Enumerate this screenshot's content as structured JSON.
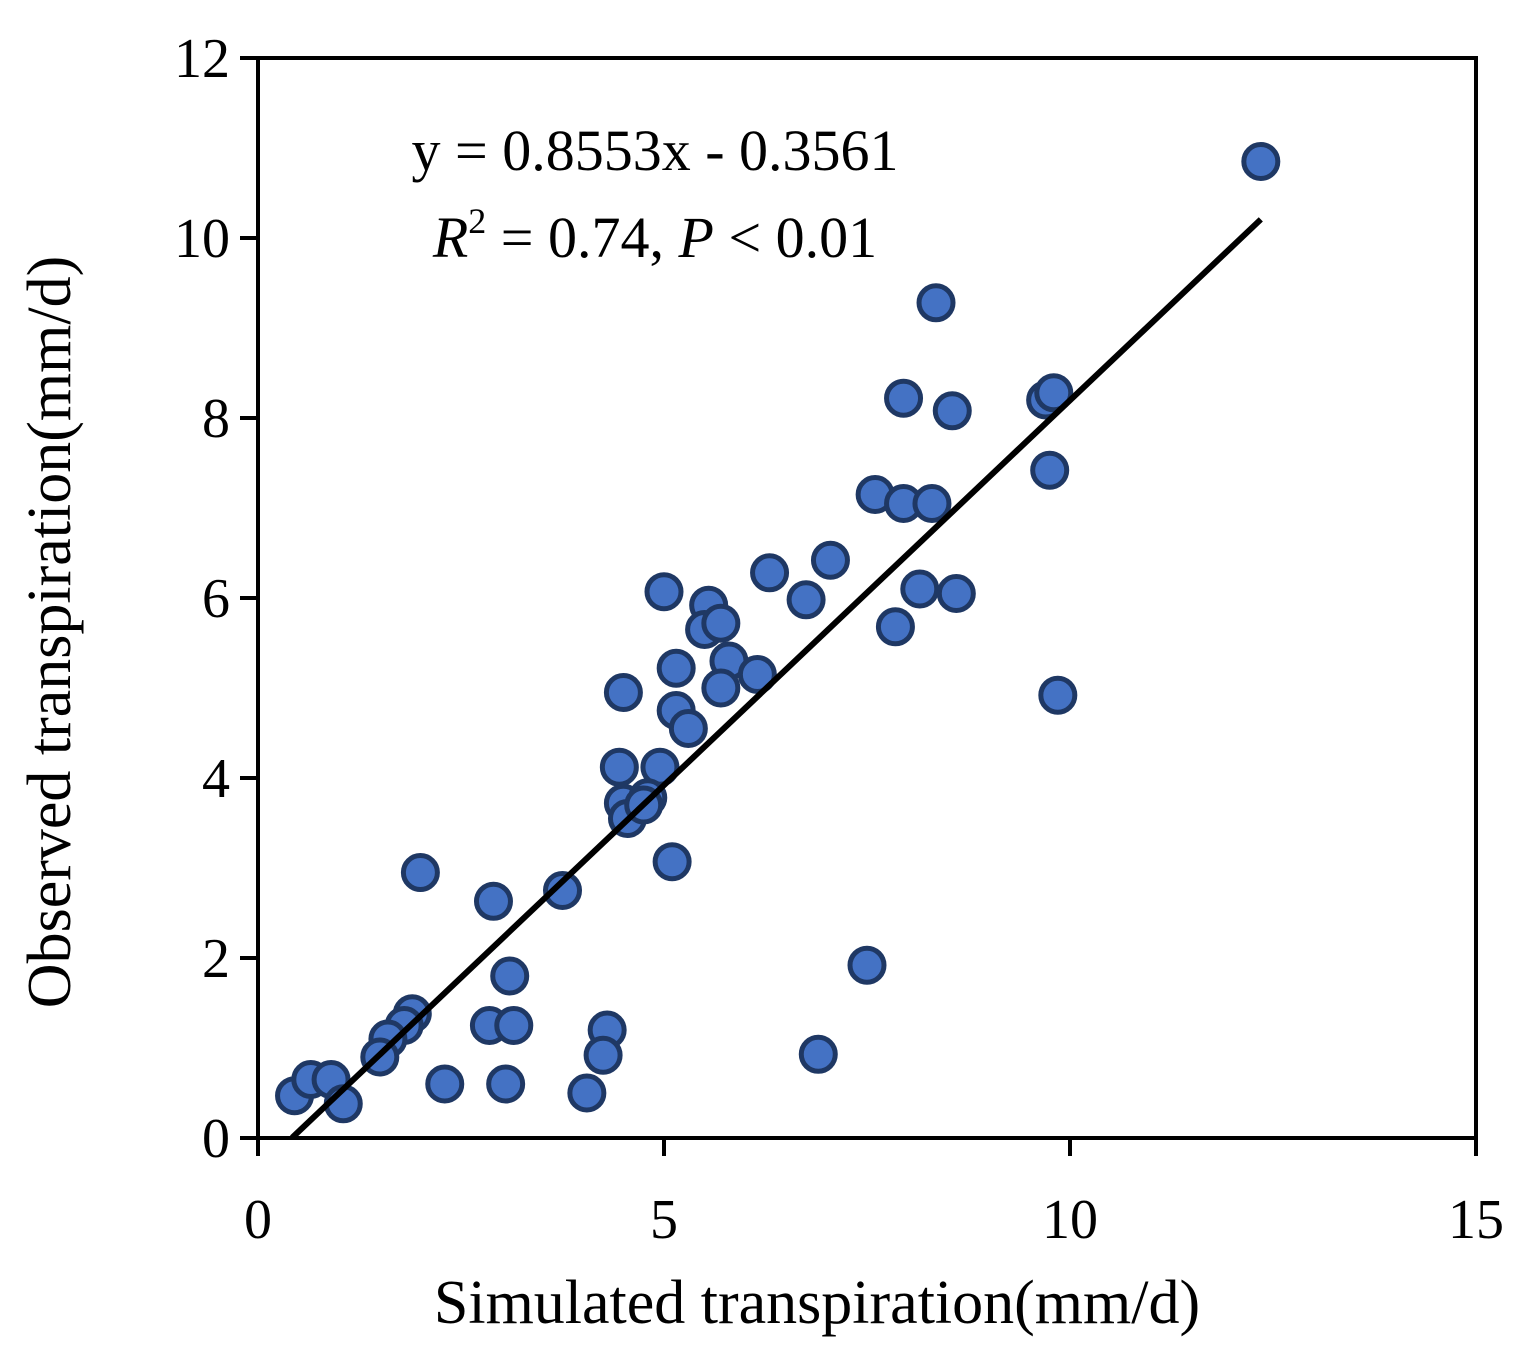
{
  "chart_data": {
    "type": "scatter",
    "xlabel": "Simulated transpiration(mm/d)",
    "ylabel": "Observed  transpiration(mm/d)",
    "xlim": [
      0,
      15
    ],
    "ylim": [
      0,
      12
    ],
    "xticks": [
      "0",
      "5",
      "10",
      "15"
    ],
    "yticks": [
      "0",
      "2",
      "4",
      "6",
      "8",
      "10",
      "12"
    ],
    "grid": false,
    "legend": "none",
    "annotation": {
      "equation": "y = 0.8553x - 0.3561",
      "r2_symbol": "R",
      "r2_superscript": "2",
      "r2_middle": " = 0.74, ",
      "p_symbol": "P",
      "p_rest": " < 0.01"
    },
    "trendline": {
      "slope": 0.8553,
      "intercept": -0.3561,
      "x_range": [
        0.42,
        12.35
      ]
    },
    "series": [
      {
        "name": "Observations",
        "color": "#4472C4",
        "edge_color": "#1F3864",
        "points": [
          [
            12.35,
            10.85
          ],
          [
            8.35,
            9.28
          ],
          [
            7.95,
            8.22
          ],
          [
            8.55,
            8.08
          ],
          [
            9.7,
            8.2
          ],
          [
            9.8,
            8.28
          ],
          [
            9.75,
            7.42
          ],
          [
            7.6,
            7.15
          ],
          [
            7.95,
            7.05
          ],
          [
            8.3,
            7.05
          ],
          [
            8.15,
            6.1
          ],
          [
            8.6,
            6.05
          ],
          [
            7.85,
            5.68
          ],
          [
            7.05,
            6.42
          ],
          [
            6.3,
            6.28
          ],
          [
            6.75,
            5.98
          ],
          [
            5.0,
            6.07
          ],
          [
            5.55,
            5.92
          ],
          [
            5.5,
            5.65
          ],
          [
            5.7,
            5.72
          ],
          [
            5.8,
            5.3
          ],
          [
            6.15,
            5.15
          ],
          [
            5.7,
            5.0
          ],
          [
            5.15,
            5.22
          ],
          [
            4.5,
            4.95
          ],
          [
            5.15,
            4.75
          ],
          [
            5.3,
            4.55
          ],
          [
            9.85,
            4.92
          ],
          [
            4.45,
            4.12
          ],
          [
            4.95,
            4.12
          ],
          [
            4.5,
            3.72
          ],
          [
            4.55,
            3.55
          ],
          [
            4.8,
            3.78
          ],
          [
            4.75,
            3.7
          ],
          [
            5.1,
            3.07
          ],
          [
            3.75,
            2.75
          ],
          [
            2.9,
            2.63
          ],
          [
            2.0,
            2.95
          ],
          [
            3.1,
            1.8
          ],
          [
            7.5,
            1.92
          ],
          [
            1.9,
            1.38
          ],
          [
            1.8,
            1.25
          ],
          [
            1.6,
            1.1
          ],
          [
            1.5,
            0.9
          ],
          [
            2.85,
            1.25
          ],
          [
            3.15,
            1.25
          ],
          [
            4.3,
            1.2
          ],
          [
            4.25,
            0.92
          ],
          [
            6.9,
            0.93
          ],
          [
            2.3,
            0.6
          ],
          [
            3.05,
            0.6
          ],
          [
            4.05,
            0.5
          ],
          [
            0.45,
            0.47
          ],
          [
            0.65,
            0.65
          ],
          [
            0.9,
            0.65
          ],
          [
            1.05,
            0.38
          ]
        ]
      }
    ]
  }
}
